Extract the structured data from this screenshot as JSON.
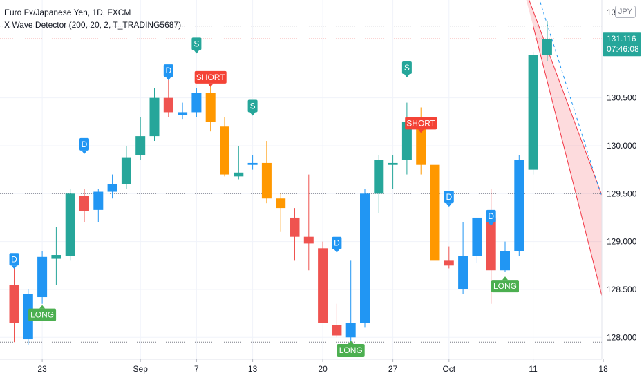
{
  "legend": {
    "symbol": "Euro Fx/Japanese Yen, 1D, FXCM",
    "indicator": "X Wave Detector (200, 20, 2, T_TRADING5687)"
  },
  "currency": "JPY",
  "price_tag": {
    "price": "131.116",
    "countdown": "07:46:08",
    "color": "#26a69a"
  },
  "colors": {
    "up": "#26a69a",
    "down": "#ef5350",
    "orange": "#ff9800",
    "blue": "#2196f3",
    "long": "#4caf50",
    "short": "#f44336",
    "channel": "#f23645"
  },
  "chart_data": {
    "type": "candlestick",
    "symbol": "Euro Fx/Japanese Yen",
    "timeframe": "1D",
    "ylim": [
      127.8,
      131.5
    ],
    "y_ticks": [
      128.0,
      128.5,
      129.0,
      129.5,
      130.0,
      130.5
    ],
    "y_tick_labels": [
      "128.000",
      "128.500",
      "129.000",
      "129.500",
      "130.000",
      "130.500"
    ],
    "y_top_partial_label": "13",
    "x_tick_labels": [
      {
        "label": "23",
        "index": 2
      },
      {
        "label": "Sep",
        "index": 9
      },
      {
        "label": "7",
        "index": 13
      },
      {
        "label": "13",
        "index": 17
      },
      {
        "label": "20",
        "index": 22
      },
      {
        "label": "27",
        "index": 27
      },
      {
        "label": "Oct",
        "index": 31
      },
      {
        "label": "11",
        "index": 37
      },
      {
        "label": "18",
        "index": 42
      }
    ],
    "candles": [
      {
        "i": 0,
        "o": 128.55,
        "h": 128.72,
        "l": 127.95,
        "c": 128.15,
        "color": "down"
      },
      {
        "i": 1,
        "o": 127.98,
        "h": 128.5,
        "l": 127.92,
        "c": 128.45,
        "color": "blue"
      },
      {
        "i": 2,
        "o": 128.42,
        "h": 128.9,
        "l": 128.35,
        "c": 128.84,
        "color": "blue"
      },
      {
        "i": 3,
        "o": 128.82,
        "h": 129.15,
        "l": 128.55,
        "c": 128.86,
        "color": "up"
      },
      {
        "i": 4,
        "o": 128.85,
        "h": 129.55,
        "l": 128.8,
        "c": 129.5,
        "color": "up"
      },
      {
        "i": 5,
        "o": 129.48,
        "h": 129.55,
        "l": 129.2,
        "c": 129.32,
        "color": "down"
      },
      {
        "i": 6,
        "o": 129.33,
        "h": 129.55,
        "l": 129.2,
        "c": 129.52,
        "color": "blue"
      },
      {
        "i": 7,
        "o": 129.52,
        "h": 129.7,
        "l": 129.45,
        "c": 129.6,
        "color": "blue"
      },
      {
        "i": 8,
        "o": 129.6,
        "h": 130.0,
        "l": 129.55,
        "c": 129.88,
        "color": "up"
      },
      {
        "i": 9,
        "o": 129.9,
        "h": 130.3,
        "l": 129.85,
        "c": 130.1,
        "color": "up"
      },
      {
        "i": 10,
        "o": 130.1,
        "h": 130.6,
        "l": 130.05,
        "c": 130.5,
        "color": "up"
      },
      {
        "i": 11,
        "o": 130.5,
        "h": 130.7,
        "l": 130.3,
        "c": 130.35,
        "color": "down"
      },
      {
        "i": 12,
        "o": 130.32,
        "h": 130.45,
        "l": 130.28,
        "c": 130.35,
        "color": "blue"
      },
      {
        "i": 13,
        "o": 130.35,
        "h": 130.6,
        "l": 130.3,
        "c": 130.55,
        "color": "blue"
      },
      {
        "i": 14,
        "o": 130.55,
        "h": 130.62,
        "l": 130.15,
        "c": 130.25,
        "color": "orange"
      },
      {
        "i": 15,
        "o": 130.2,
        "h": 130.3,
        "l": 129.68,
        "c": 129.7,
        "color": "orange"
      },
      {
        "i": 16,
        "o": 129.68,
        "h": 130.0,
        "l": 129.65,
        "c": 129.72,
        "color": "up"
      },
      {
        "i": 17,
        "o": 129.8,
        "h": 129.9,
        "l": 129.75,
        "c": 129.82,
        "color": "blue"
      },
      {
        "i": 18,
        "o": 129.82,
        "h": 130.05,
        "l": 129.4,
        "c": 129.45,
        "color": "orange"
      },
      {
        "i": 19,
        "o": 129.45,
        "h": 129.5,
        "l": 129.1,
        "c": 129.35,
        "color": "orange"
      },
      {
        "i": 20,
        "o": 129.25,
        "h": 129.35,
        "l": 128.8,
        "c": 129.05,
        "color": "down"
      },
      {
        "i": 21,
        "o": 129.05,
        "h": 129.7,
        "l": 128.7,
        "c": 128.98,
        "color": "down"
      },
      {
        "i": 22,
        "o": 128.93,
        "h": 129.0,
        "l": 128.15,
        "c": 128.15,
        "color": "down"
      },
      {
        "i": 23,
        "o": 128.13,
        "h": 128.35,
        "l": 128.0,
        "c": 128.02,
        "color": "down"
      },
      {
        "i": 24,
        "o": 128.0,
        "h": 128.8,
        "l": 127.95,
        "c": 128.15,
        "color": "blue"
      },
      {
        "i": 25,
        "o": 128.15,
        "h": 129.55,
        "l": 128.1,
        "c": 129.5,
        "color": "blue"
      },
      {
        "i": 26,
        "o": 129.5,
        "h": 129.9,
        "l": 129.3,
        "c": 129.85,
        "color": "up"
      },
      {
        "i": 27,
        "o": 129.82,
        "h": 129.9,
        "l": 129.55,
        "c": 129.8,
        "color": "up"
      },
      {
        "i": 28,
        "o": 129.85,
        "h": 130.45,
        "l": 129.7,
        "c": 130.25,
        "color": "up"
      },
      {
        "i": 29,
        "o": 130.25,
        "h": 130.4,
        "l": 129.7,
        "c": 129.8,
        "color": "orange"
      },
      {
        "i": 30,
        "o": 129.8,
        "h": 129.95,
        "l": 128.75,
        "c": 128.8,
        "color": "orange"
      },
      {
        "i": 31,
        "o": 128.8,
        "h": 128.95,
        "l": 128.72,
        "c": 128.75,
        "color": "down"
      },
      {
        "i": 32,
        "o": 128.5,
        "h": 129.2,
        "l": 128.45,
        "c": 128.85,
        "color": "blue"
      },
      {
        "i": 33,
        "o": 128.85,
        "h": 129.25,
        "l": 128.78,
        "c": 129.25,
        "color": "blue"
      },
      {
        "i": 34,
        "o": 129.25,
        "h": 129.55,
        "l": 128.35,
        "c": 128.7,
        "color": "down"
      },
      {
        "i": 35,
        "o": 128.7,
        "h": 129.0,
        "l": 128.68,
        "c": 128.9,
        "color": "blue"
      },
      {
        "i": 36,
        "o": 128.9,
        "h": 129.9,
        "l": 128.85,
        "c": 129.85,
        "color": "blue"
      },
      {
        "i": 37,
        "o": 129.75,
        "h": 130.98,
        "l": 129.7,
        "c": 130.95,
        "color": "up"
      },
      {
        "i": 38,
        "o": 130.95,
        "h": 131.3,
        "l": 130.88,
        "c": 131.116,
        "color": "up"
      }
    ],
    "signals": [
      {
        "type": "D",
        "index": 0,
        "side": "above",
        "price": 128.75
      },
      {
        "type": "LONG",
        "index": 2,
        "side": "below",
        "price": 128.3
      },
      {
        "type": "D",
        "index": 5,
        "side": "above",
        "price": 129.95
      },
      {
        "type": "D",
        "index": 11,
        "side": "above",
        "price": 130.72
      },
      {
        "type": "S",
        "index": 13,
        "side": "above",
        "price": 131.0
      },
      {
        "type": "SHORT",
        "index": 14,
        "side": "label",
        "price": 130.65
      },
      {
        "type": "S",
        "index": 17,
        "side": "above",
        "price": 130.35
      },
      {
        "type": "D",
        "index": 23,
        "side": "above",
        "price": 128.92
      },
      {
        "type": "LONG",
        "index": 24,
        "side": "below",
        "price": 127.93
      },
      {
        "type": "S",
        "index": 28,
        "side": "above",
        "price": 130.75
      },
      {
        "type": "SHORT",
        "index": 29,
        "side": "label",
        "price": 130.17
      },
      {
        "type": "D",
        "index": 31,
        "side": "above",
        "price": 129.4
      },
      {
        "type": "D",
        "index": 34,
        "side": "above",
        "price": 129.2
      },
      {
        "type": "LONG",
        "index": 35,
        "side": "below",
        "price": 128.6
      }
    ],
    "levels": [
      {
        "price": 131.25,
        "style": "dotted",
        "color": "#787b86"
      },
      {
        "price": 131.116,
        "style": "dotted",
        "color": "#ef5350"
      },
      {
        "price": 129.5,
        "style": "dotted",
        "color": "#787b86"
      },
      {
        "price": 127.95,
        "style": "dotted",
        "color": "#787b86"
      }
    ],
    "channel": {
      "upper": [
        {
          "i": 36,
          "price": 131.8
        },
        {
          "i": 43,
          "price": 129.05
        }
      ],
      "lower": [
        {
          "i": 37,
          "price": 131.25
        },
        {
          "i": 43,
          "price": 127.8
        }
      ],
      "mid": [
        {
          "i": 37.5,
          "price": 131.5
        },
        {
          "i": 43,
          "price": 128.95
        }
      ]
    },
    "grid": true
  }
}
